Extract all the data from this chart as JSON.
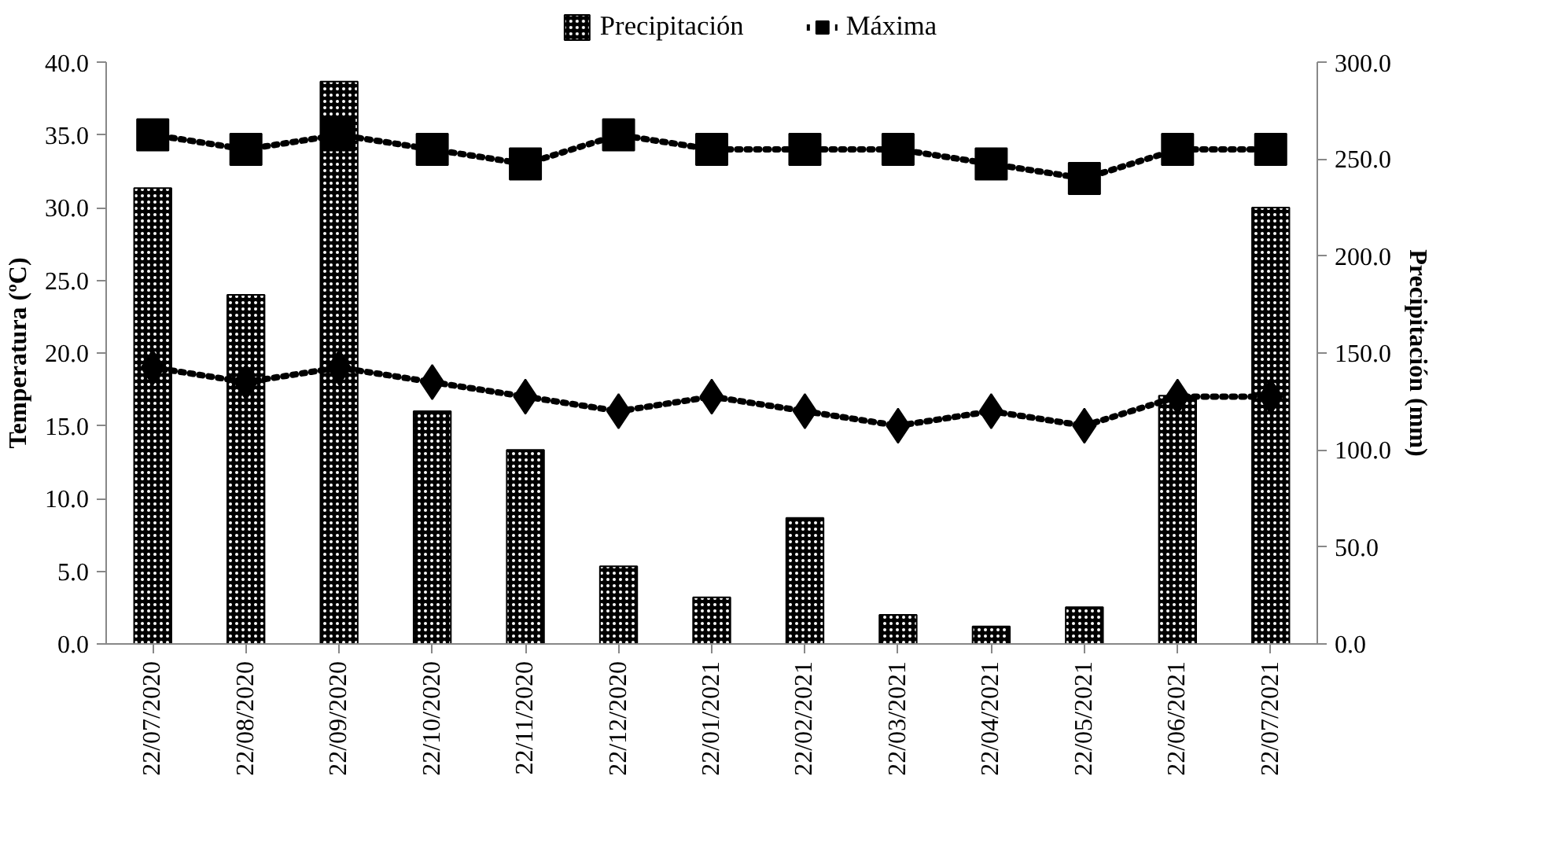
{
  "chart_data": {
    "type": "bar",
    "ylabel": "Temperatura (ºC)",
    "y2label": "Precipitación (mm)",
    "categories": [
      "22/07/2020",
      "22/08/2020",
      "22/09/2020",
      "22/10/2020",
      "22/11/2020",
      "22/12/2020",
      "22/01/2021",
      "22/02/2021",
      "22/03/2021",
      "22/04/2021",
      "22/05/2021",
      "22/06/2021",
      "22/07/2021"
    ],
    "series": [
      {
        "name": "Precipitación",
        "axis": "y2",
        "color": "#000000",
        "values": [
          235,
          180,
          290,
          120,
          100,
          40,
          24,
          65,
          15,
          9,
          19,
          128,
          225
        ]
      },
      {
        "name": "Máxima",
        "type": "line",
        "marker": "square",
        "line_style": "dotted",
        "color": "#000000",
        "values": [
          35,
          34,
          35,
          34,
          33,
          35,
          34,
          34,
          34,
          33,
          32,
          34,
          34
        ]
      },
      {
        "type": "line",
        "marker": "diamond",
        "line_style": "dotted",
        "color": "#000000",
        "values": [
          19,
          18,
          19,
          18,
          17,
          16,
          17,
          16,
          15,
          16,
          15,
          17,
          17
        ]
      }
    ],
    "ylim": [
      0,
      40
    ],
    "yticks": [
      {
        "value": 0,
        "label": "0.0"
      },
      {
        "value": 5,
        "label": "5.0"
      },
      {
        "value": 10,
        "label": "10.0"
      },
      {
        "value": 15,
        "label": "15.0"
      },
      {
        "value": 20,
        "label": "20.0"
      },
      {
        "value": 25,
        "label": "25.0"
      },
      {
        "value": 30,
        "label": "30.0"
      },
      {
        "value": 35,
        "label": "35.0"
      },
      {
        "value": 40,
        "label": "40.0"
      }
    ],
    "y2lim": [
      0,
      300
    ],
    "y2ticks": [
      {
        "value": 0,
        "label": "0.0"
      },
      {
        "value": 50,
        "label": "50.0"
      },
      {
        "value": 100,
        "label": "100.0"
      },
      {
        "value": 150,
        "label": "150.0"
      },
      {
        "value": 200,
        "label": "200.0"
      },
      {
        "value": 250,
        "label": "250.0"
      },
      {
        "value": 300,
        "label": "300.0"
      }
    ],
    "grid": false,
    "legend": "top"
  }
}
